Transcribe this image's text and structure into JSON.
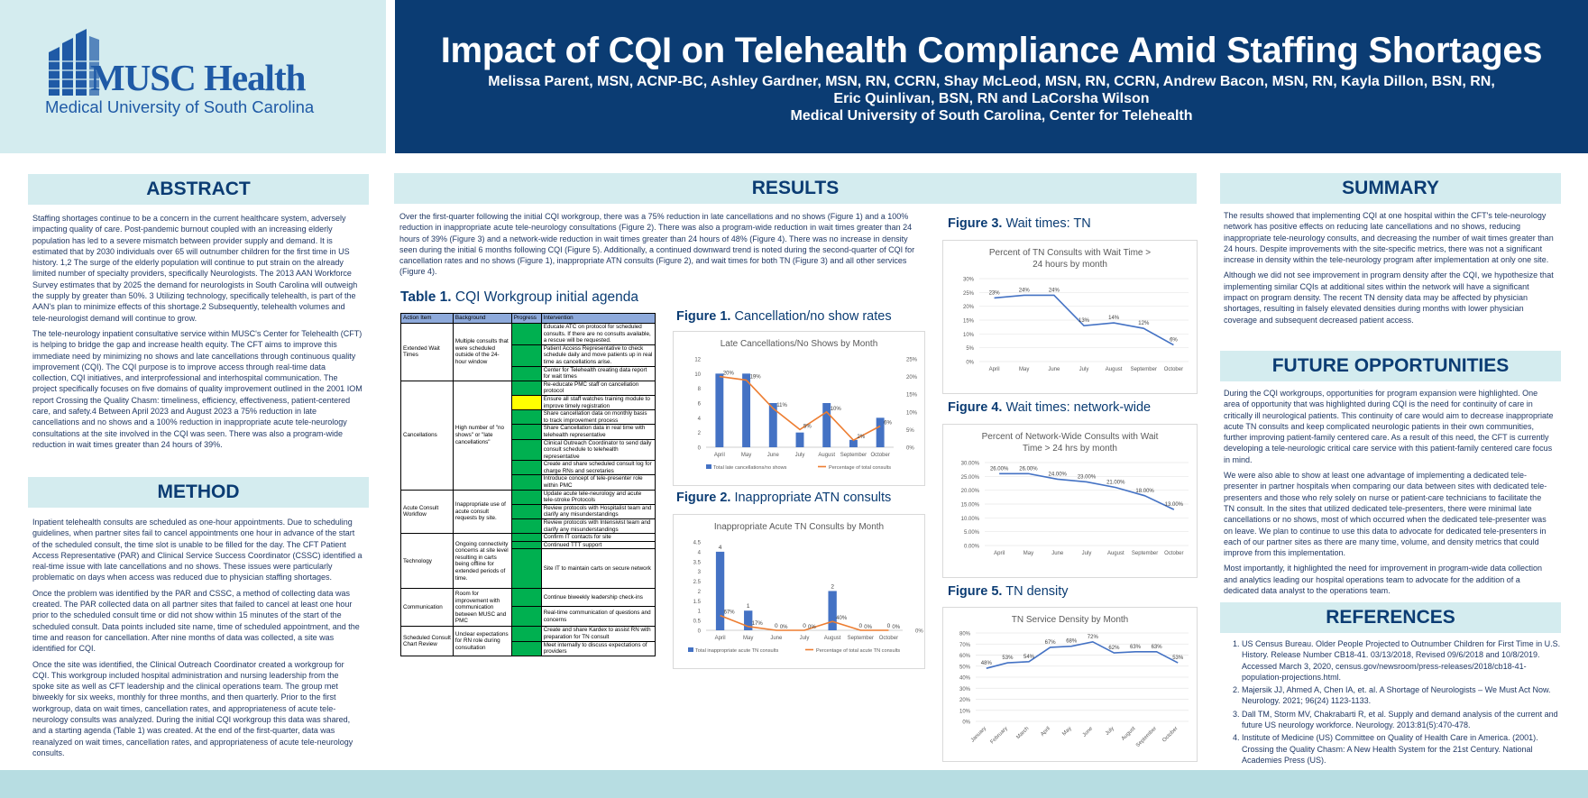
{
  "logo": {
    "brand": "MUSC Health",
    "sub": "Medical University of South Carolina"
  },
  "header": {
    "title": "Impact of CQI on Telehealth Compliance Amid Staffing Shortages",
    "authors_line1": "Melissa Parent, MSN, ACNP-BC, Ashley Gardner, MSN, RN, CCRN, Shay McLeod, MSN, RN, CCRN, Andrew Bacon, MSN, RN, Kayla Dillon, BSN, RN,",
    "authors_line2": "Eric Quinlivan, BSN, RN and LaCorsha Wilson",
    "affiliation": "Medical University of South Carolina, Center for Telehealth"
  },
  "abstract": {
    "heading": "ABSTRACT",
    "paragraphs": [
      "Staffing shortages continue to be a concern in the current healthcare system, adversely impacting quality of care. Post-pandemic burnout coupled with an increasing elderly population has led to a severe mismatch between provider supply and demand. It is estimated that by 2030 individuals over 65 will outnumber children for the first time in US history. 1,2 The surge of the elderly population will continue to put strain on the already limited number of specialty providers, specifically Neurologists. The 2013 AAN Workforce Survey estimates that by 2025 the demand for neurologists in South Carolina will outweigh the supply by greater than 50%. 3 Utilizing technology, specifically telehealth, is part of the AAN's plan to minimize effects of this shortage.2 Subsequently, telehealth volumes and tele-neurologist demand will continue to grow.",
      "The tele-neurology inpatient consultative service within MUSC's Center for Telehealth (CFT) is helping to bridge the gap and increase health equity. The CFT aims to improve this immediate need by minimizing no shows and late cancellations through continuous quality improvement (CQI). The CQI purpose is to improve access through real-time data collection, CQI initiatives, and interprofessional and interhospital communication. The project specifically focuses on five domains of quality improvement outlined in the 2001 IOM report Crossing the Quality Chasm: timeliness, efficiency, effectiveness, patient-centered care, and safety.4 Between April 2023 and August 2023 a 75% reduction in late cancellations and no shows and a 100% reduction in inappropriate acute tele-neurology consultations at the site involved in the CQI was seen. There was also a program-wide reduction in wait times greater than 24 hours of 39%."
    ]
  },
  "method": {
    "heading": "METHOD",
    "paragraphs": [
      "Inpatient telehealth consults are scheduled as one-hour appointments. Due to scheduling guidelines, when partner sites fail to cancel appointments one hour in advance of the start of the scheduled consult, the time slot is unable to be filled for the day. The CFT Patient Access Representative (PAR) and Clinical Service Success Coordinator (CSSC) identified a real-time issue with late cancellations and no shows. These issues were particularly problematic on days when access was reduced due to physician staffing shortages.",
      "Once the problem was identified by the PAR and CSSC, a method of collecting data was created. The PAR collected data on all partner sites that failed to cancel at least one hour prior to the scheduled consult time or did not show within 15 minutes of the start of the scheduled consult. Data points included site name, time of scheduled appointment, and the time and reason for cancellation. After nine months of data was collected, a site was identified for CQI.",
      "Once the site was identified, the Clinical Outreach Coordinator created a workgroup for CQI. This workgroup included hospital administration and nursing leadership from the spoke site as well as CFT leadership and the clinical operations team. The group met biweekly for six weeks, monthly for three months, and then quarterly. Prior to the first workgroup, data on wait times, cancellation rates, and appropriateness of acute tele-neurology consults was analyzed. During the initial CQI workgroup this data was shared, and a starting agenda (Table 1) was created. At the end of the first-quarter, data was reanalyzed on wait times, cancellation rates, and appropriateness of acute tele-neurology consults."
    ]
  },
  "results": {
    "heading": "RESULTS",
    "paragraph": "Over the first-quarter following the initial CQI workgroup, there was a 75% reduction in late cancellations and no shows (Figure 1) and a 100% reduction in inappropriate acute tele-neurology consultations (Figure 2). There was also a program-wide reduction in wait times greater than 24 hours of 39% (Figure 3) and a network-wide reduction in wait times greater than 24 hours of 48% (Figure 4). There was no increase in density seen during the initial 6 months following CQI (Figure 5). Additionally, a continued downward trend is noted during the second-quarter of CQI for cancellation rates and no shows (Figure 1), inappropriate ATN consults (Figure 2), and wait times for both TN (Figure 3) and all other services (Figure 4)."
  },
  "table1": {
    "label": "Table 1.",
    "caption": "CQI Workgroup initial agenda",
    "headers": [
      "Action Item",
      "Background",
      "Progress",
      "Intervention"
    ],
    "groups": [
      {
        "action": "Extended Wait Times",
        "background": "Multiple consults that were scheduled outside of the 24-hour window",
        "interventions": [
          "Educate ATC on protocol for scheduled consults. If there are no consults available, a rescue will be requested.",
          "Patient Access Representative to check schedule daily and move patients up in real time as cancellations arise.",
          "Center for Telehealth creating data report for wait times"
        ]
      },
      {
        "action": "Cancellations",
        "background": "High number of \"no shows\" or \"late cancellations\"",
        "interventions": [
          "Re-educate PMC staff on cancellation protocol",
          "Ensure all staff watches training module to improve timely registration",
          "Share cancellation data on monthly basis to track improvement process",
          "Share Cancellation data in real time with telehealth representative",
          "Clinical Outreach Coordinator to send daily consult schedule to telehealth representative",
          "Create and share scheduled consult log for charge RNs and secretaries",
          "Introduce concept of tele-presenter role within PMC"
        ]
      },
      {
        "action": "Acute Consult Workflow",
        "background": "Inappropriate use of acute consult requests by site.",
        "interventions": [
          "Update acute tele-neurology and acute tele-stroke Protocols",
          "Review protocols with Hospitalist team and clarify any misunderstandings",
          "Review protocols with Intensivist team and clarify any misunderstandings"
        ]
      },
      {
        "action": "Technology",
        "background": "Ongoing connectivity concerns at site level resulting in carts being offline for extended periods of time.",
        "interventions": [
          "Confirm IT contacts for site",
          "Continued TTT support",
          "Site IT to maintain carts on secure network"
        ]
      },
      {
        "action": "Communication",
        "background": "Room for improvement with communication between MUSC and PMC",
        "interventions": [
          "Continue biweekly leadership check-ins",
          "Real-time communication of questions and concerns"
        ]
      },
      {
        "action": "Scheduled Consult Chart Review",
        "background": "Unclear expectations for RN role during consultation",
        "interventions": [
          "Create and share Kardex to assist RN with preparation for TN consult",
          "Meet internally to discuss expectations of providers"
        ]
      }
    ]
  },
  "fig1": {
    "label": "Figure 1.",
    "caption": "Cancellation/no show rates"
  },
  "fig2": {
    "label": "Figure 2.",
    "caption": "Inappropriate ATN consults"
  },
  "fig3": {
    "label": "Figure 3.",
    "caption": "Wait times: TN"
  },
  "fig4": {
    "label": "Figure 4.",
    "caption": "Wait times: network-wide"
  },
  "fig5": {
    "label": "Figure 5.",
    "caption": "TN density"
  },
  "chart_data": [
    {
      "id": "fig1",
      "type": "bar",
      "title": "Late Cancellations/No Shows by Month",
      "categories": [
        "April",
        "May",
        "June",
        "July",
        "August",
        "September",
        "October"
      ],
      "series": [
        {
          "name": "Total late cancellations/no shows",
          "type": "bar",
          "axis": "left",
          "values": [
            10,
            10,
            6,
            2,
            6,
            1,
            4
          ]
        },
        {
          "name": "Percentage of total consults",
          "type": "line",
          "axis": "right",
          "values": [
            20,
            19,
            11,
            5,
            10,
            2,
            6
          ]
        }
      ],
      "line_labels": [
        "20%",
        "19%",
        "11%",
        "5%",
        "10%",
        "2%",
        "6%"
      ],
      "ylim_left": [
        0,
        12
      ],
      "yticks_left": [
        "0",
        "2",
        "4",
        "6",
        "8",
        "10",
        "12"
      ],
      "ylim_right": [
        0,
        25
      ],
      "yticks_right": [
        "0%",
        "5%",
        "10%",
        "15%",
        "20%",
        "25%"
      ],
      "colors": {
        "bar": "#4472c4",
        "line": "#ed7d31"
      }
    },
    {
      "id": "fig2",
      "type": "bar",
      "title": "Inappropriate Acute TN Consults by Month",
      "categories": [
        "April",
        "May",
        "June",
        "July",
        "August",
        "September",
        "October"
      ],
      "series": [
        {
          "name": "Total inappropriate acute TN consults",
          "type": "bar",
          "axis": "left",
          "values": [
            4,
            1,
            0,
            0,
            2,
            0,
            0
          ]
        },
        {
          "name": "Percentage of total acute TN consults",
          "type": "line",
          "axis": "right",
          "values": [
            67,
            17,
            0,
            0,
            40,
            0,
            0
          ]
        }
      ],
      "bar_labels": [
        "4",
        "1",
        "0",
        "0",
        "2",
        "0",
        "0"
      ],
      "line_labels": [
        "67%",
        "17%",
        "0%",
        "0%",
        "40%",
        "0%",
        "0%"
      ],
      "ylim_left": [
        0,
        4.5
      ],
      "yticks_left": [
        "0",
        "0.5",
        "1",
        "1.5",
        "2",
        "2.5",
        "3",
        "3.5",
        "4",
        "4.5"
      ],
      "ylim_right": [
        0,
        400
      ],
      "yticks_right": [
        "0%"
      ],
      "colors": {
        "bar": "#4472c4",
        "line": "#ed7d31"
      }
    },
    {
      "id": "fig3",
      "type": "line",
      "title": "Percent of TN Consults with Wait Time > 24 hours by month",
      "categories": [
        "April",
        "May",
        "June",
        "July",
        "August",
        "September",
        "October"
      ],
      "series": [
        {
          "values": [
            23,
            24,
            24,
            13,
            14,
            12,
            6
          ]
        }
      ],
      "point_labels": [
        "23%",
        "24%",
        "24%",
        "13%",
        "14%",
        "12%",
        "6%"
      ],
      "ylim": [
        0,
        30
      ],
      "yticks": [
        "0%",
        "5%",
        "10%",
        "15%",
        "20%",
        "25%",
        "30%"
      ],
      "colors": {
        "line": "#4472c4"
      }
    },
    {
      "id": "fig4",
      "type": "line",
      "title": "Percent of Network-Wide Consults with Wait Time > 24 hrs by month",
      "categories": [
        "April",
        "May",
        "June",
        "July",
        "August",
        "September",
        "October"
      ],
      "series": [
        {
          "values": [
            26,
            26,
            24,
            23,
            21,
            18,
            13
          ]
        }
      ],
      "point_labels": [
        "26.00%",
        "26.00%",
        "24.00%",
        "23.00%",
        "21.00%",
        "18.00%",
        "13.00%"
      ],
      "ylim": [
        0,
        30
      ],
      "yticks": [
        "0.00%",
        "5.00%",
        "10.00%",
        "15.00%",
        "20.00%",
        "25.00%",
        "30.00%"
      ],
      "colors": {
        "line": "#4472c4"
      }
    },
    {
      "id": "fig5",
      "type": "line",
      "title": "TN Service Density by Month",
      "categories": [
        "January",
        "February",
        "March",
        "April",
        "May",
        "June",
        "July",
        "August",
        "September",
        "October"
      ],
      "series": [
        {
          "values": [
            48,
            53,
            54,
            67,
            68,
            72,
            62,
            63,
            63,
            53
          ]
        }
      ],
      "point_labels": [
        "48%",
        "53%",
        "54%",
        "67%",
        "68%",
        "72%",
        "62%",
        "63%",
        "63%",
        "53%"
      ],
      "ylim": [
        0,
        80
      ],
      "yticks": [
        "0%",
        "10%",
        "20%",
        "30%",
        "40%",
        "50%",
        "60%",
        "70%",
        "80%"
      ],
      "colors": {
        "line": "#4472c4"
      }
    }
  ],
  "summary": {
    "heading": "SUMMARY",
    "paragraphs": [
      "The results showed that implementing CQI at one hospital within the CFT's tele-neurology network has positive effects on reducing late cancellations and no shows, reducing inappropriate tele-neurology consults, and decreasing the number of wait times greater than 24 hours. Despite improvements with the site-specific metrics, there was not a significant increase in density within the tele-neurology program after implementation at only one site.",
      "Although we did not see improvement in program density after the CQI, we hypothesize that implementing similar CQIs at additional sites within the network will have a significant impact on program density. The recent TN density data may be affected by physician shortages, resulting in falsely elevated densities during months with lower physician coverage and subsequent decreased patient access."
    ]
  },
  "future": {
    "heading": "FUTURE OPPORTUNITIES",
    "paragraphs": [
      "During the CQI workgroups, opportunities for program expansion were highlighted. One area of opportunity that was highlighted during CQI is the need for continuity of care in critically ill neurological patients. This continuity of care would aim to decrease inappropriate acute TN consults and keep complicated neurologic patients in their own communities, further improving patient-family centered care. As a result of this need, the CFT is currently developing a tele-neurologic critical care service with this patient-family centered care focus in mind.",
      "We were also able to show at least one advantage of implementing a dedicated tele-presenter in partner hospitals when comparing our data between sites with dedicated tele-presenters and those who rely solely on nurse or patient-care technicians to facilitate the TN consult. In the sites that utilized dedicated tele-presenters, there were minimal late cancellations or no shows, most of which occurred when the dedicated tele-presenter was on leave. We plan to continue to use this data to advocate for dedicated tele-presenters in each of our partner sites as there are many time, volume, and density metrics that could improve from this implementation.",
      "Most importantly, it highlighted the need for improvement in program-wide data collection and analytics leading our hospital operations team to advocate for the addition of a dedicated data analyst to the operations team."
    ]
  },
  "references": {
    "heading": "REFERENCES",
    "items": [
      "US Census Bureau. Older People Projected to Outnumber Children for First Time in U.S. History. Release Number CB18-41. 03/13/2018, Revised 09/6/2018 and 10/8/2019. Accessed March 3, 2020, census.gov/newsroom/press-releases/2018/cb18-41-population-projections.html.",
      "Majersik JJ, Ahmed A, Chen IA, et. al. A Shortage of Neurologists – We Must Act Now. Neurology. 2021; 96(24) 1123-1133.",
      "Dall TM, Storm MV, Chakrabarti R, et al. Supply and demand analysis of the current and future US neurology workforce. Neurology. 2013:81(5):470-478.",
      "Institute of Medicine (US) Committee on Quality of Health Care in America. (2001). Crossing the Quality Chasm: A New Health System for the 21st Century. National Academies Press (US)."
    ]
  }
}
